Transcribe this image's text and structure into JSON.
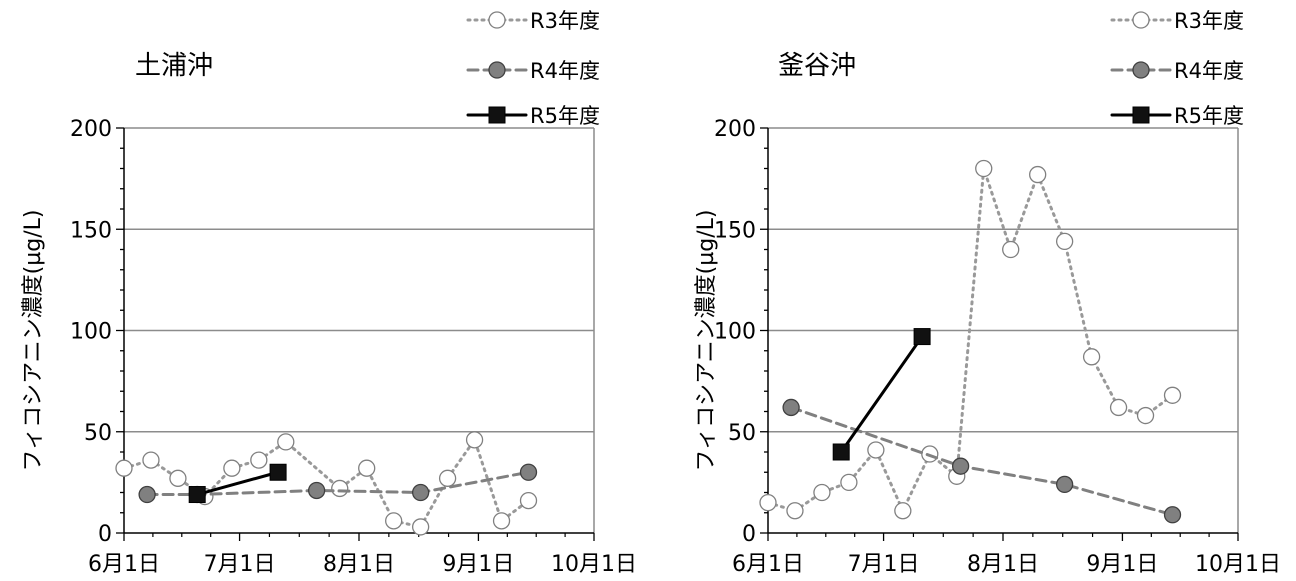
{
  "chart_data": [
    {
      "type": "line",
      "title": "土浦沖",
      "ylabel": "フィコシアニン濃度(µg/L)",
      "xlabel": "",
      "ylim": [
        0,
        200
      ],
      "yticks": [
        0,
        50,
        100,
        150,
        200
      ],
      "ytick_labels": [
        "0",
        "50",
        "100",
        "150",
        "200"
      ],
      "xlim": [
        "2023-06-01",
        "2023-10-01"
      ],
      "xticks": [
        "2023-06-01",
        "2023-07-01",
        "2023-08-01",
        "2023-09-01",
        "2023-10-01"
      ],
      "xtick_labels": [
        "6月1日",
        "7月1日",
        "8月1日",
        "9月1日",
        "10月1日"
      ],
      "grid": "horizontal",
      "legend": "top-right",
      "series": [
        {
          "name": "R3年度",
          "style": "dotted-open-circle",
          "color": "#999999",
          "x": [
            "2023-06-01",
            "2023-06-08",
            "2023-06-15",
            "2023-06-22",
            "2023-06-29",
            "2023-07-06",
            "2023-07-13",
            "2023-07-27",
            "2023-08-03",
            "2023-08-10",
            "2023-08-17",
            "2023-08-24",
            "2023-08-31",
            "2023-09-07",
            "2023-09-14"
          ],
          "y": [
            32,
            36,
            27,
            18,
            32,
            36,
            45,
            22,
            32,
            6,
            3,
            27,
            46,
            6,
            16
          ]
        },
        {
          "name": "R4年度",
          "style": "dashed-filled-circle",
          "color": "#808080",
          "x": [
            "2023-06-07",
            "2023-06-20",
            "2023-07-21",
            "2023-08-17",
            "2023-09-14"
          ],
          "y": [
            19,
            19,
            21,
            20,
            30
          ]
        },
        {
          "name": "R5年度",
          "style": "solid-filled-square",
          "color": "#000000",
          "x": [
            "2023-06-20",
            "2023-07-11"
          ],
          "y": [
            19,
            30
          ]
        }
      ]
    },
    {
      "type": "line",
      "title": "釜谷沖",
      "ylabel": "フィコシアニン濃度(µg/L)",
      "xlabel": "",
      "ylim": [
        0,
        200
      ],
      "yticks": [
        0,
        50,
        100,
        150,
        200
      ],
      "ytick_labels": [
        "0",
        "50",
        "100",
        "150",
        "200"
      ],
      "xlim": [
        "2023-06-01",
        "2023-10-01"
      ],
      "xticks": [
        "2023-06-01",
        "2023-07-01",
        "2023-08-01",
        "2023-09-01",
        "2023-10-01"
      ],
      "xtick_labels": [
        "6月1日",
        "7月1日",
        "8月1日",
        "9月1日",
        "10月1日"
      ],
      "grid": "horizontal",
      "legend": "top-right",
      "series": [
        {
          "name": "R3年度",
          "style": "dotted-open-circle",
          "color": "#999999",
          "x": [
            "2023-06-01",
            "2023-06-08",
            "2023-06-15",
            "2023-06-22",
            "2023-06-29",
            "2023-07-06",
            "2023-07-13",
            "2023-07-20",
            "2023-07-27",
            "2023-08-03",
            "2023-08-10",
            "2023-08-17",
            "2023-08-24",
            "2023-08-31",
            "2023-09-07",
            "2023-09-14"
          ],
          "y": [
            15,
            11,
            20,
            25,
            41,
            11,
            39,
            28,
            180,
            140,
            177,
            144,
            87,
            62,
            58,
            68
          ]
        },
        {
          "name": "R4年度",
          "style": "dashed-filled-circle",
          "color": "#808080",
          "x": [
            "2023-06-07",
            "2023-07-21",
            "2023-08-17",
            "2023-09-14"
          ],
          "y": [
            62,
            33,
            24,
            9
          ]
        },
        {
          "name": "R5年度",
          "style": "solid-filled-square",
          "color": "#000000",
          "x": [
            "2023-06-20",
            "2023-07-11"
          ],
          "y": [
            40,
            97
          ]
        }
      ]
    }
  ]
}
